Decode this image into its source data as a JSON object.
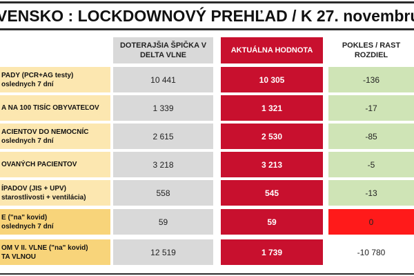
{
  "title": "VENSKO : LOCKDOWNOVÝ PREHĽAD  / K 27. novembru",
  "headers": {
    "peak": "DOTERAJŠIA ŠPIČKA V DELTA VLNE",
    "current": "AKTUÁLNA HODNOTA",
    "diff": "POKLES / RAST ROZDIEL"
  },
  "rows": [
    {
      "label1": "PADY (PCR+AG testy)",
      "label2": "oslednych 7 dní",
      "peak": "10 441",
      "current": "10 305",
      "diff": "-136"
    },
    {
      "label1": "A NA 100 TISÍC OBYVATEĽOV",
      "label2": "",
      "peak": "1 339",
      "current": "1 321",
      "diff": "-17"
    },
    {
      "label1": "ACIENTOV DO NEMOCNÍC",
      "label2": "oslednych 7 dní",
      "peak": "2 615",
      "current": "2 530",
      "diff": "-85"
    },
    {
      "label1": "OVANÝCH PACIENTOV",
      "label2": "",
      "peak": "3 218",
      "current": "3 213",
      "diff": "-5"
    },
    {
      "label1": "ÍPADOV (JIS + UPV)",
      "label2": "starostlivosti + ventilácia)",
      "peak": "558",
      "current": "545",
      "diff": "-13"
    },
    {
      "label1": "E (\"na\" kovid)",
      "label2": "oslednych 7 dní",
      "peak": "59",
      "current": "59",
      "diff": "0"
    },
    {
      "label1": "OM V II. VLNE (\"na\" kovid)",
      "label2": "TA VLNOU",
      "peak": "12 519",
      "current": "1 739",
      "diff": "-10 780"
    }
  ],
  "colors": {
    "red_accent": "#c8102e",
    "peak_gray": "#d9d9d9",
    "label_yellow": "#fce7b0",
    "decrease_green": "#cfe4b6",
    "zero_red": "#ff1a1a"
  }
}
